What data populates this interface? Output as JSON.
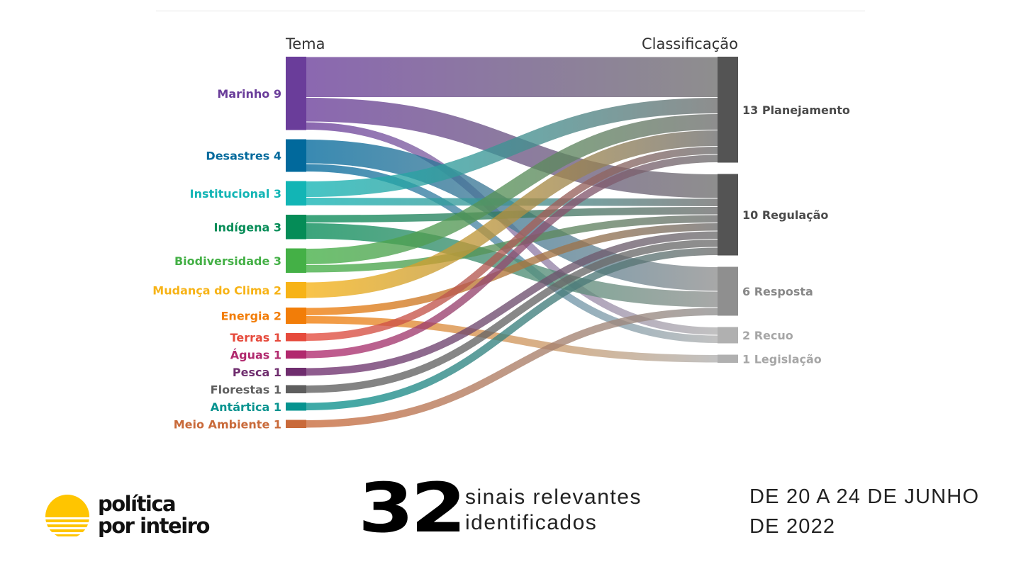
{
  "chart_data": {
    "type": "sankey",
    "left_header": "Tema",
    "right_header": "Classificação",
    "sources": [
      {
        "name": "Marinho",
        "value": 9,
        "color": "#6a3d9a"
      },
      {
        "name": "Desastres",
        "value": 4,
        "color": "#01699c"
      },
      {
        "name": "Institucional",
        "value": 3,
        "color": "#12b5b5"
      },
      {
        "name": "Indígena",
        "value": 3,
        "color": "#058c57"
      },
      {
        "name": "Biodiversidade",
        "value": 3,
        "color": "#44b046"
      },
      {
        "name": "Mudança do Clima",
        "value": 2,
        "color": "#f7b316"
      },
      {
        "name": "Energia",
        "value": 2,
        "color": "#f27d08"
      },
      {
        "name": "Terras",
        "value": 1,
        "color": "#e64a3c"
      },
      {
        "name": "Águas",
        "value": 1,
        "color": "#b1296e"
      },
      {
        "name": "Pesca",
        "value": 1,
        "color": "#6f2d6e"
      },
      {
        "name": "Florestas",
        "value": 1,
        "color": "#5e5e5e"
      },
      {
        "name": "Antártica",
        "value": 1,
        "color": "#06938f"
      },
      {
        "name": "Meio Ambiente",
        "value": 1,
        "color": "#c96a3a"
      }
    ],
    "targets": [
      {
        "name": "Planejamento",
        "value": 13,
        "color": "#545454",
        "label_color": "#4a4a4a"
      },
      {
        "name": "Regulação",
        "value": 10,
        "color": "#545454",
        "label_color": "#4a4a4a"
      },
      {
        "name": "Resposta",
        "value": 6,
        "color": "#8f8f8f",
        "label_color": "#888888"
      },
      {
        "name": "Recuo",
        "value": 2,
        "color": "#b0b0b0",
        "label_color": "#a6a6a6"
      },
      {
        "name": "Legislação",
        "value": 1,
        "color": "#b0b0b0",
        "label_color": "#a6a6a6"
      }
    ],
    "links": [
      {
        "source": "Marinho",
        "target": "Planejamento",
        "value": 5
      },
      {
        "source": "Marinho",
        "target": "Regulação",
        "value": 3
      },
      {
        "source": "Marinho",
        "target": "Recuo",
        "value": 1
      },
      {
        "source": "Desastres",
        "target": "Resposta",
        "value": 3
      },
      {
        "source": "Desastres",
        "target": "Recuo",
        "value": 1
      },
      {
        "source": "Institucional",
        "target": "Planejamento",
        "value": 2
      },
      {
        "source": "Institucional",
        "target": "Regulação",
        "value": 1
      },
      {
        "source": "Indígena",
        "target": "Regulação",
        "value": 1
      },
      {
        "source": "Indígena",
        "target": "Resposta",
        "value": 2
      },
      {
        "source": "Biodiversidade",
        "target": "Planejamento",
        "value": 2
      },
      {
        "source": "Biodiversidade",
        "target": "Regulação",
        "value": 1
      },
      {
        "source": "Mudança do Clima",
        "target": "Planejamento",
        "value": 2
      },
      {
        "source": "Energia",
        "target": "Regulação",
        "value": 1
      },
      {
        "source": "Energia",
        "target": "Legislação",
        "value": 1
      },
      {
        "source": "Terras",
        "target": "Planejamento",
        "value": 1
      },
      {
        "source": "Águas",
        "target": "Planejamento",
        "value": 1
      },
      {
        "source": "Pesca",
        "target": "Regulação",
        "value": 1
      },
      {
        "source": "Florestas",
        "target": "Regulação",
        "value": 1
      },
      {
        "source": "Antártica",
        "target": "Regulação",
        "value": 1
      },
      {
        "source": "Meio Ambiente",
        "target": "Resposta",
        "value": 1
      }
    ]
  },
  "footer": {
    "logo_line1": "política",
    "logo_line2": "por inteiro",
    "logo_color": "#ffc500",
    "count": "32",
    "count_caption_line1": "sinais relevantes",
    "count_caption_line2": "identificados",
    "date_line1": "DE 20 A 24 DE JUNHO",
    "date_line2": "DE 2022"
  }
}
